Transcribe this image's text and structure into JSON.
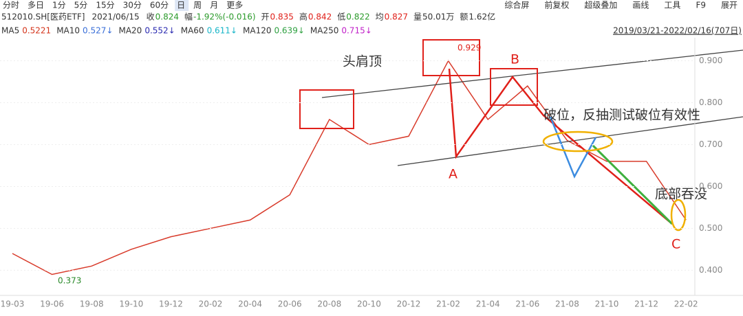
{
  "toolbar": {
    "left": [
      "分时",
      "多日",
      "1分",
      "5分",
      "15分",
      "30分",
      "60分",
      "日",
      "周",
      "月",
      "更多"
    ],
    "right": [
      "综合屏",
      "前复权",
      "超级叠加",
      "画线",
      "工具",
      "F9",
      "展开"
    ]
  },
  "info": {
    "symbol": "512010.SH[医药ETF]",
    "date": "2021/06/15",
    "fields": [
      {
        "label": "收",
        "value": "0.824"
      },
      {
        "label": "幅",
        "value": "-1.92%(-0.016)"
      },
      {
        "label": "开",
        "value": "0.835"
      },
      {
        "label": "高",
        "value": "0.842"
      },
      {
        "label": "低",
        "value": "0.822"
      },
      {
        "label": "均",
        "value": "0.827"
      },
      {
        "label": "量",
        "value": "50.01万"
      },
      {
        "label": "额",
        "value": "1.62亿"
      }
    ]
  },
  "ma": [
    {
      "name": "MA5",
      "value": "0.5221",
      "color": "#d4351c"
    },
    {
      "name": "MA10",
      "value": "0.527↓",
      "color": "#3a6fd8"
    },
    {
      "name": "MA20",
      "value": "0.552↓",
      "color": "#2a2ab0"
    },
    {
      "name": "MA60",
      "value": "0.611↓",
      "color": "#17b5c8"
    },
    {
      "name": "MA120",
      "value": "0.639↓",
      "color": "#2ea040"
    },
    {
      "name": "MA250",
      "value": "0.715↓",
      "color": "#c020c8"
    }
  ],
  "range": "2019/03/21-2022/02/16(707日)",
  "chart_data": {
    "type": "line",
    "categories": [
      "19-03",
      "19-06",
      "19-08",
      "19-10",
      "19-12",
      "20-02",
      "20-04",
      "20-06",
      "20-08",
      "20-10",
      "20-12",
      "21-02",
      "21-04",
      "21-06",
      "21-08",
      "21-10",
      "21-12",
      "22-02"
    ],
    "series": [
      {
        "name": "512010.SH[医药ETF]",
        "color": "#d83a2a",
        "values": [
          0.44,
          0.39,
          0.41,
          0.45,
          0.48,
          0.5,
          0.52,
          0.58,
          0.76,
          0.7,
          0.72,
          0.9,
          0.76,
          0.84,
          0.71,
          0.66,
          0.66,
          0.52
        ]
      }
    ],
    "ylim": [
      0.34,
      0.955
    ],
    "yticks": [
      {
        "value": 0.4,
        "label": "0.400"
      },
      {
        "value": 0.5,
        "label": "0.500"
      },
      {
        "value": 0.6,
        "label": "0.600"
      },
      {
        "value": 0.7,
        "label": "0.700"
      },
      {
        "value": 0.8,
        "label": "0.800"
      },
      {
        "value": 0.9,
        "label": "0.900"
      }
    ],
    "grid": true,
    "annotations": {
      "high": "0.929",
      "low": "0.373",
      "pattern": "头肩顶",
      "a": "A",
      "b": "B",
      "c": "C",
      "breakdown": "破位，反抽测试破位有效性",
      "engulf": "底部吞没"
    }
  }
}
